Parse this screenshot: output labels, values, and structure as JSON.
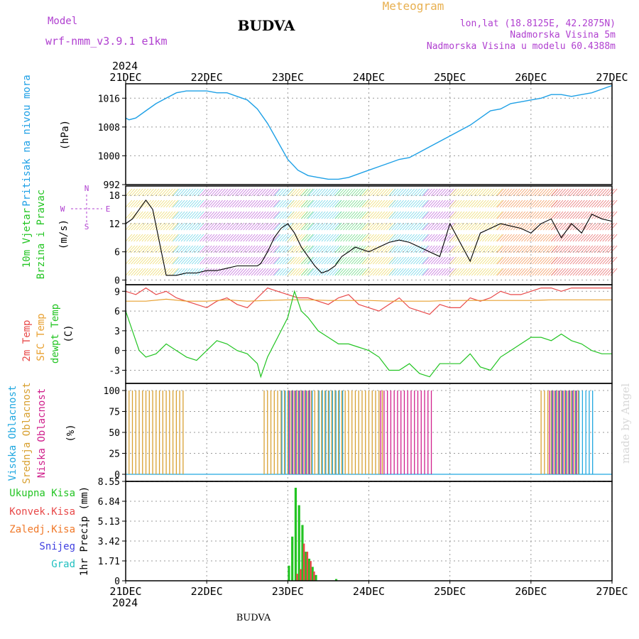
{
  "header": {
    "model_label": "Model",
    "model_name": "wrf-nmm_v3.9.1  e1km",
    "station": "BUDVA",
    "meteogram_label": "Meteogram",
    "lonlat": "lon,lat (18.8125E, 42.2875N)",
    "altitude": "Nadmorska Visina 5m",
    "model_altitude": "Nadmorska Visina u modelu 60.4388m"
  },
  "footer": {
    "station": "BUDVA",
    "credit": "made by Angel"
  },
  "colors": {
    "pressure": "#1ea0e6",
    "temp2m": "#e84848",
    "sfc_temp": "#e8a030",
    "dewpt": "#22c422",
    "cloud_high": "#22a8e0",
    "cloud_mid": "#d8a030",
    "cloud_low": "#d0208c",
    "precip_total": "#22c422",
    "precip_conv": "#e84848",
    "precip_frozen": "#f07828",
    "snow": "#4040e0",
    "hail": "#20c0c0",
    "title_purple": "#b040d0",
    "orange_title": "#e8b050"
  },
  "chart_data": [
    {
      "type": "line",
      "panel": "pressure",
      "ylabel_line1": "Pritisak na nivou mora",
      "ylabel_unit": "(hPa)",
      "top_year": "2024",
      "x_ticks": [
        "21DEC",
        "22DEC",
        "23DEC",
        "24DEC",
        "25DEC",
        "26DEC",
        "27DEC"
      ],
      "x_range_hours": [
        0,
        144
      ],
      "ylim": [
        992,
        1020
      ],
      "y_ticks": [
        992,
        1000,
        1008,
        1016
      ],
      "series": [
        {
          "key": "pressure",
          "x": [
            0,
            1,
            3,
            6,
            9,
            12,
            15,
            18,
            21,
            24,
            27,
            30,
            33,
            36,
            39,
            42,
            45,
            48,
            51,
            54,
            57,
            60,
            63,
            66,
            69,
            72,
            75,
            78,
            81,
            84,
            87,
            90,
            93,
            96,
            99,
            102,
            105,
            108,
            111,
            114,
            117,
            120,
            123,
            126,
            129,
            132,
            135,
            138,
            141,
            144
          ],
          "values": [
            1010.5,
            1010,
            1010.5,
            1012.5,
            1014.5,
            1016,
            1017.5,
            1018,
            1018,
            1018,
            1017.5,
            1017.5,
            1016.5,
            1015.5,
            1013,
            1009,
            1004,
            999,
            996,
            994.5,
            994,
            993.5,
            993.5,
            994,
            995,
            996,
            997,
            998,
            999,
            999.5,
            1001,
            1002.5,
            1004,
            1005.5,
            1007,
            1008.5,
            1010.5,
            1012.5,
            1013,
            1014.5,
            1015,
            1015.5,
            1016,
            1017,
            1017,
            1016.5,
            1017,
            1017.5,
            1018.5,
            1019.5
          ]
        }
      ]
    },
    {
      "type": "line",
      "panel": "wind",
      "ylabel_line1": "10m Vjetar",
      "ylabel_line2": "Brzina i Pravac",
      "ylabel_unit": "(m/s)",
      "compass": {
        "n": "N",
        "s": "S",
        "e": "E",
        "w": "W"
      },
      "ylim": [
        -1,
        20
      ],
      "y_ticks": [
        0,
        6,
        12,
        18
      ],
      "series": [
        {
          "key": "wind_speed",
          "x": [
            0,
            2,
            4,
            6,
            8,
            10,
            12,
            15,
            18,
            21,
            24,
            27,
            30,
            33,
            36,
            39,
            40,
            42,
            44,
            46,
            48,
            50,
            52,
            54,
            56,
            58,
            60,
            62,
            64,
            66,
            68,
            70,
            72,
            75,
            78,
            81,
            84,
            87,
            90,
            93,
            96,
            99,
            102,
            105,
            108,
            111,
            114,
            117,
            120,
            123,
            126,
            129,
            132,
            135,
            138,
            141,
            144
          ],
          "values": [
            12,
            13,
            15,
            17,
            15,
            8,
            1,
            1,
            1.5,
            1.5,
            2,
            2,
            2.5,
            3,
            3,
            3,
            3.5,
            6,
            9,
            11,
            12,
            10,
            7,
            5,
            3,
            1.5,
            2,
            3,
            5,
            6,
            7,
            6.5,
            6,
            7,
            8,
            8.5,
            8,
            7,
            6,
            5,
            12,
            8,
            4,
            10,
            11,
            12,
            11.5,
            11,
            10,
            12,
            13,
            9,
            12,
            10,
            14,
            13,
            12.5
          ]
        }
      ]
    },
    {
      "type": "line",
      "panel": "temperature",
      "ylabel_line1": "2m Temp",
      "ylabel_line2": "SFC Temp",
      "ylabel_line3": "dewpt Temp",
      "ylabel_unit": "(C)",
      "ylim": [
        -5,
        10
      ],
      "y_ticks": [
        -3,
        0,
        3,
        6,
        9
      ],
      "series": [
        {
          "key": "temp2m",
          "name": "2m Temp",
          "x": [
            0,
            3,
            6,
            9,
            12,
            15,
            18,
            21,
            24,
            27,
            30,
            33,
            36,
            39,
            42,
            45,
            48,
            51,
            54,
            57,
            60,
            63,
            66,
            69,
            72,
            75,
            78,
            81,
            84,
            87,
            90,
            93,
            96,
            99,
            102,
            105,
            108,
            111,
            114,
            117,
            120,
            123,
            126,
            129,
            132,
            135,
            138,
            141,
            144
          ],
          "values": [
            9,
            8.5,
            9.5,
            8.5,
            9,
            8,
            7.5,
            7,
            6.5,
            7.5,
            8,
            7,
            6.5,
            8,
            9.5,
            9,
            8.5,
            8,
            8,
            7.5,
            7,
            8,
            8.5,
            7,
            6.5,
            6,
            7,
            8,
            6.5,
            6,
            5.5,
            7,
            6.5,
            6.5,
            8,
            7.5,
            8,
            9,
            8.5,
            8.5,
            9,
            9.5,
            9.5,
            9,
            9.5,
            9.5,
            9.5,
            9.5,
            9.5
          ]
        },
        {
          "key": "sfc_temp",
          "name": "SFC Temp",
          "x": [
            0,
            6,
            12,
            18,
            24,
            30,
            36,
            42,
            48,
            54,
            60,
            66,
            72,
            78,
            84,
            90,
            96,
            102,
            108,
            114,
            120,
            126,
            132,
            138,
            144
          ],
          "values": [
            7.5,
            7.5,
            7.8,
            7.5,
            7.5,
            7.7,
            7.5,
            7.6,
            7.7,
            7.7,
            7.6,
            7.6,
            7.6,
            7.5,
            7.5,
            7.5,
            7.6,
            7.6,
            7.6,
            7.6,
            7.6,
            7.7,
            7.7,
            7.7,
            7.7
          ]
        },
        {
          "key": "dewpt",
          "name": "dewpt Temp",
          "x": [
            0,
            2,
            4,
            6,
            9,
            12,
            15,
            18,
            21,
            24,
            27,
            30,
            33,
            36,
            39,
            40,
            42,
            45,
            48,
            50,
            52,
            54,
            57,
            60,
            63,
            66,
            69,
            72,
            75,
            78,
            81,
            84,
            87,
            90,
            93,
            96,
            99,
            102,
            105,
            108,
            111,
            114,
            117,
            120,
            123,
            126,
            129,
            132,
            135,
            138,
            141,
            144
          ],
          "values": [
            6,
            3,
            0,
            -1,
            -0.5,
            1,
            0,
            -1,
            -1.5,
            0,
            1.5,
            1,
            0,
            -0.5,
            -2,
            -4,
            -1,
            2,
            5,
            9,
            6,
            5,
            3,
            2,
            1,
            1,
            0.5,
            0,
            -1,
            -3,
            -3,
            -2,
            -3.5,
            -4,
            -2,
            -2,
            -2,
            -0.5,
            -2.5,
            -3,
            -1,
            0,
            1,
            2,
            2,
            1.5,
            2.5,
            1.5,
            1,
            0,
            -0.5,
            -0.5
          ]
        }
      ]
    },
    {
      "type": "bar",
      "panel": "cloud",
      "ylabel_line1": "Visoka Oblacnost",
      "ylabel_line2": "Srednja Oblacnost",
      "ylabel_line3": "Niska Oblacnost",
      "ylabel_unit": "(%)",
      "ylim": [
        0,
        100
      ],
      "y_ticks": [
        0,
        25,
        50,
        75,
        100
      ],
      "note": "values 100 within hour ranges",
      "series": [
        {
          "key": "cloud_mid",
          "name": "Srednja Oblacnost",
          "ranges": [
            [
              0,
              17
            ],
            [
              41,
              76
            ],
            [
              123,
              134
            ]
          ],
          "value": 100
        },
        {
          "key": "cloud_high",
          "name": "Visoka Oblacnost",
          "ranges": [
            [
              46,
              55
            ],
            [
              57,
              64
            ],
            [
              126,
              138
            ]
          ],
          "value": 100
        },
        {
          "key": "cloud_low",
          "name": "Niska Oblacnost",
          "ranges": [
            [
              48,
              54
            ],
            [
              75,
              90
            ],
            [
              125,
              133
            ]
          ],
          "value": 100
        }
      ]
    },
    {
      "type": "bar",
      "panel": "precip",
      "ylabel_unit": "1hr Precip (mm)",
      "ylim": [
        0,
        8.55
      ],
      "y_ticks": [
        0,
        1.71,
        3.42,
        5.13,
        6.84,
        8.55
      ],
      "legend": [
        "Ukupna Kisa",
        "Konvek.Kisa",
        "Zaledj.Kisa",
        "Snijeg",
        "Grad"
      ],
      "bottom_year": "2024",
      "series": [
        {
          "key": "precip_total",
          "name": "Ukupna Kisa",
          "x": [
            48,
            49,
            50,
            51,
            52,
            53,
            54,
            55,
            56,
            62
          ],
          "values": [
            1.3,
            3.8,
            8.0,
            6.5,
            4.8,
            2.5,
            1.9,
            1.2,
            0.5,
            0.15
          ]
        },
        {
          "key": "precip_conv",
          "name": "Konvek.Kisa",
          "x": [
            50,
            51,
            52,
            53,
            54,
            55
          ],
          "values": [
            0.6,
            1.0,
            3.2,
            2.5,
            1.7,
            0.8
          ]
        }
      ]
    }
  ]
}
